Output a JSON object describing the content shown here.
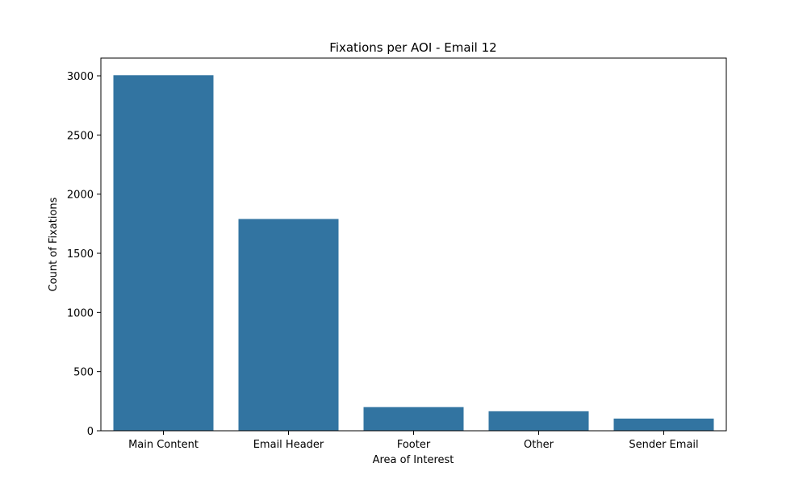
{
  "chart_data": {
    "type": "bar",
    "title": "Fixations per AOI - Email 12",
    "xlabel": "Area of Interest",
    "ylabel": "Count of Fixations",
    "categories": [
      "Main Content",
      "Email Header",
      "Footer",
      "Other",
      "Sender Email"
    ],
    "values": [
      3005,
      1790,
      200,
      165,
      103
    ],
    "ylim": [
      0,
      3150
    ],
    "yticks": [
      0,
      500,
      1000,
      1500,
      2000,
      2500,
      3000
    ],
    "grid": false,
    "bar_color": "#3274a1"
  }
}
